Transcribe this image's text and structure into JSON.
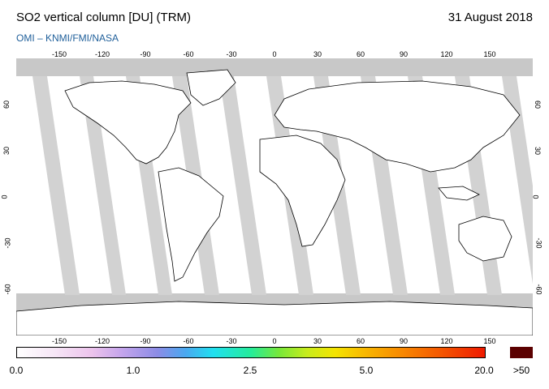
{
  "header": {
    "title": "SO2 vertical column [DU] (TRM)",
    "date": "31 August 2018",
    "credit": "OMI  –  KNMI/FMI/NASA"
  },
  "map": {
    "lon_ticks": [
      "-150",
      "-120",
      "-90",
      "-60",
      "-30",
      "0",
      "30",
      "60",
      "90",
      "120",
      "150"
    ],
    "lat_ticks": [
      "60",
      "30",
      "0",
      "-30",
      "-60"
    ],
    "colors": {
      "no_data": "#c8c8c8",
      "orbit_stripe": "#a8a8a8",
      "land": "#a8a8a8",
      "coast": "#000000"
    }
  },
  "colorbar": {
    "labels": [
      "0.0",
      "1.0",
      "2.5",
      "5.0",
      "20.0"
    ],
    "overflow_label": ">50",
    "overflow_color": "#5b0000"
  }
}
